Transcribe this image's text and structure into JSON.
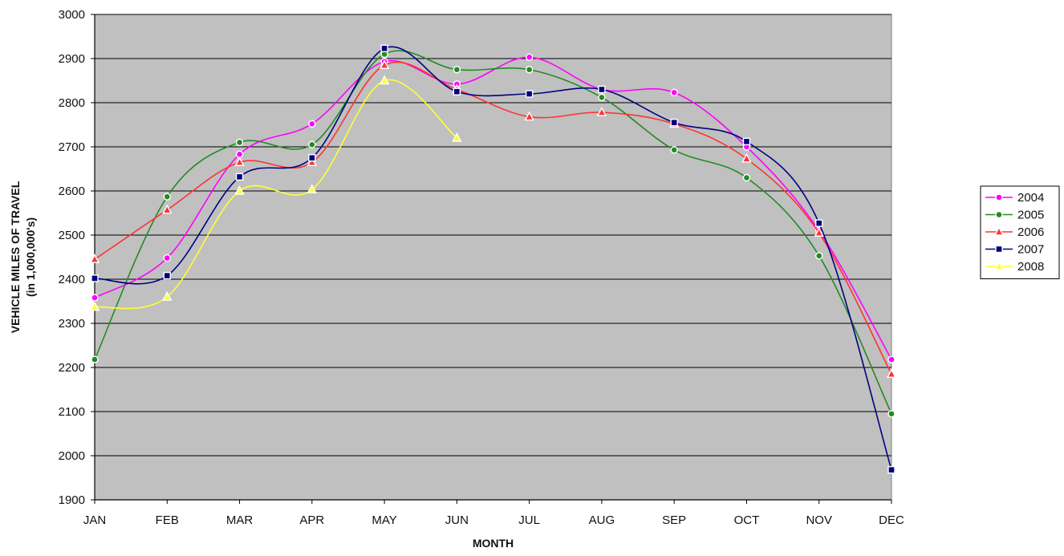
{
  "chart_data": {
    "type": "line",
    "title": "",
    "xlabel": "MONTH",
    "ylabel": "VEHICLE MILES OF TRAVEL",
    "ylabel_sub": "(in 1,000,000's)",
    "categories": [
      "JAN",
      "FEB",
      "MAR",
      "APR",
      "MAY",
      "JUN",
      "JUL",
      "AUG",
      "SEP",
      "OCT",
      "NOV",
      "DEC"
    ],
    "ylim": [
      1900,
      3000
    ],
    "yticks": [
      1900,
      2000,
      2100,
      2200,
      2300,
      2400,
      2500,
      2600,
      2700,
      2800,
      2900,
      3000
    ],
    "grid": true,
    "smooth": true,
    "legend_position": "right",
    "plot_background": "#c0c0c0",
    "series": [
      {
        "name": "2004",
        "color": "#ff00ff",
        "marker": "circle",
        "values": [
          2358,
          2448,
          2683,
          2752,
          2893,
          2842,
          2903,
          2830,
          2823,
          2700,
          2510,
          2218
        ]
      },
      {
        "name": "2005",
        "color": "#228b22",
        "marker": "circle",
        "values": [
          2218,
          2587,
          2710,
          2705,
          2910,
          2875,
          2875,
          2812,
          2693,
          2630,
          2453,
          2095
        ]
      },
      {
        "name": "2006",
        "color": "#ff3333",
        "marker": "triangle",
        "values": [
          2445,
          2557,
          2665,
          2665,
          2885,
          2830,
          2768,
          2778,
          2752,
          2673,
          2505,
          2185
        ]
      },
      {
        "name": "2007",
        "color": "#000080",
        "marker": "square",
        "values": [
          2402,
          2408,
          2632,
          2675,
          2923,
          2825,
          2820,
          2830,
          2755,
          2712,
          2527,
          1968
        ]
      },
      {
        "name": "2008",
        "color": "#ffff33",
        "marker": "triangle",
        "values": [
          2337,
          2360,
          2600,
          2603,
          2850,
          2720,
          null,
          null,
          null,
          null,
          null,
          null
        ]
      }
    ]
  }
}
